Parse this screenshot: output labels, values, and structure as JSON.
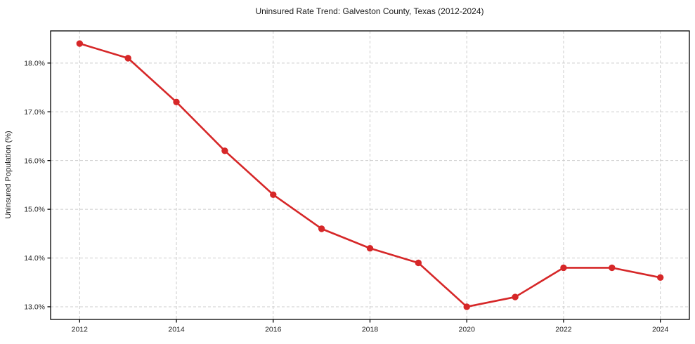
{
  "chart_data": {
    "type": "line",
    "title": "Uninsured Rate Trend: Galveston County, Texas (2012-2024)",
    "xlabel": "",
    "ylabel": "Uninsured Population (%)",
    "x": [
      2012,
      2013,
      2014,
      2015,
      2016,
      2017,
      2018,
      2019,
      2020,
      2021,
      2022,
      2023,
      2024
    ],
    "values": [
      18.4,
      18.1,
      17.2,
      16.2,
      15.3,
      14.6,
      14.2,
      13.9,
      13.0,
      13.2,
      13.8,
      13.8,
      13.6
    ],
    "xticks": [
      2012,
      2014,
      2016,
      2018,
      2020,
      2022,
      2024
    ],
    "xtick_labels": [
      "2012",
      "2014",
      "2016",
      "2018",
      "2020",
      "2022",
      "2024"
    ],
    "yticks": [
      13.0,
      14.0,
      15.0,
      16.0,
      17.0,
      18.0
    ],
    "ytick_labels": [
      "13.0%",
      "14.0%",
      "15.0%",
      "16.0%",
      "17.0%",
      "18.0%"
    ],
    "xlim": [
      2011.4,
      2024.6
    ],
    "ylim": [
      12.74,
      18.66
    ],
    "grid": true,
    "grid_style": "dashed",
    "legend": false,
    "line_color": "#d62728",
    "marker": "circle",
    "grid_color": "#cccccc",
    "axis_color": "#000000",
    "background": "#ffffff"
  }
}
